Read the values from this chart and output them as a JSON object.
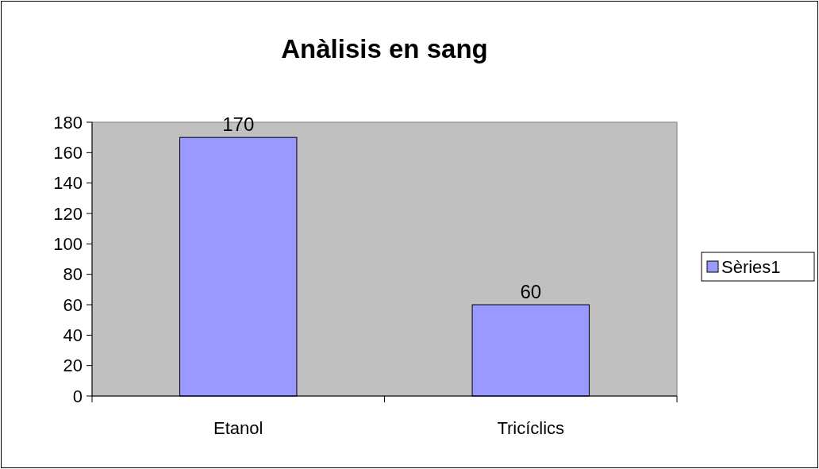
{
  "chart_data": {
    "type": "bar",
    "title": "Anàlisis en sang",
    "categories": [
      "Etanol",
      "Tricíclics"
    ],
    "series": [
      {
        "name": "Sèries1",
        "color": "#9999ff",
        "values": [
          170,
          60
        ]
      }
    ],
    "ylim": [
      0,
      180
    ],
    "yticks": [
      0,
      20,
      40,
      60,
      80,
      100,
      120,
      140,
      160,
      180
    ],
    "data_labels": true,
    "legend": "right",
    "grid": false
  }
}
